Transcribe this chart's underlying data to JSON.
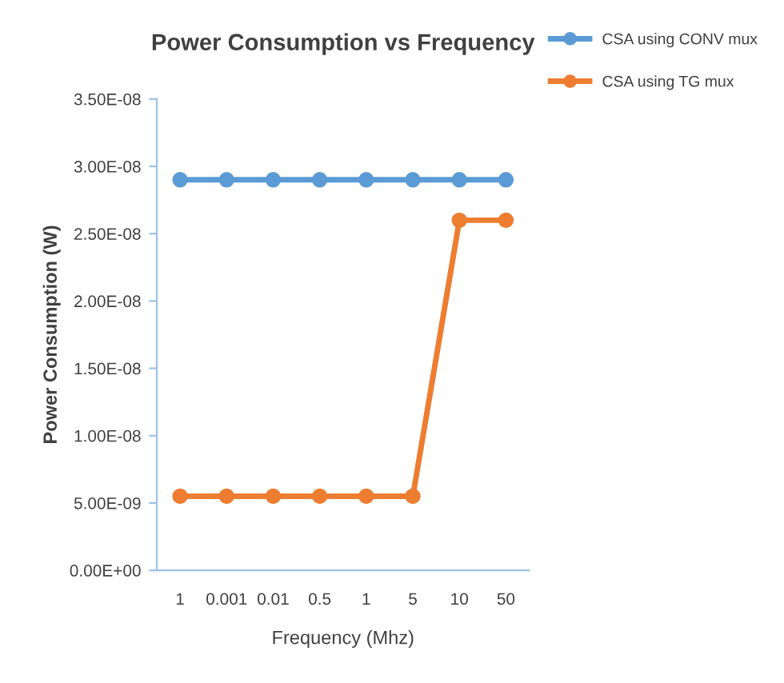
{
  "chart_data": {
    "type": "line",
    "title": "Power Consumption vs Frequency",
    "xlabel": "Frequency (Mhz)",
    "ylabel": "Power Consumption (W)",
    "categories": [
      "1",
      "0.001",
      "0.01",
      "0.5",
      "1",
      "5",
      "10",
      "50"
    ],
    "series": [
      {
        "name": "CSA using CONV mux",
        "color": "#5b9bd5",
        "values": [
          2.9e-08,
          2.9e-08,
          2.9e-08,
          2.9e-08,
          2.9e-08,
          2.9e-08,
          2.9e-08,
          2.9e-08
        ]
      },
      {
        "name": "CSA using TG mux",
        "color": "#ed7d31",
        "values": [
          5.5e-09,
          5.5e-09,
          5.5e-09,
          5.5e-09,
          5.5e-09,
          5.5e-09,
          2.6e-08,
          2.6e-08
        ]
      }
    ],
    "ylim": [
      0,
      3.5e-08
    ],
    "yticks": [
      {
        "value": 0,
        "label": "0.00E+00"
      },
      {
        "value": 5e-09,
        "label": "5.00E-09"
      },
      {
        "value": 1e-08,
        "label": "1.00E-08"
      },
      {
        "value": 1.5e-08,
        "label": "1.50E-08"
      },
      {
        "value": 2e-08,
        "label": "2.00E-08"
      },
      {
        "value": 2.5e-08,
        "label": "2.50E-08"
      },
      {
        "value": 3e-08,
        "label": "3.00E-08"
      },
      {
        "value": 3.5e-08,
        "label": "3.50E-08"
      }
    ],
    "grid": false,
    "legend": "top right",
    "marker": "circle",
    "line_style": "solid"
  }
}
